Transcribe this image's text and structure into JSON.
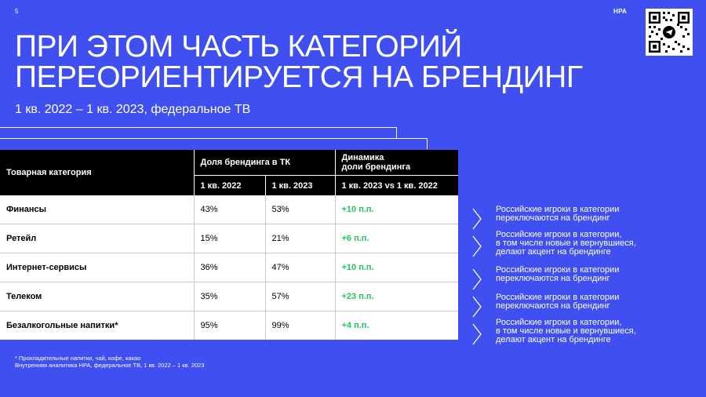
{
  "page_number": "5",
  "brand": "НРА",
  "title_lines": [
    "При этом часть категорий",
    "переориентируется на брендинг"
  ],
  "subtitle": "1 кв. 2022 – 1 кв. 2023, федеральное ТВ",
  "table": {
    "header": {
      "category": "Товарная категория",
      "share": "Доля брендинга в ТК",
      "dynamics": [
        "Динамика",
        "доли брендинга"
      ],
      "q1_2022": "1 кв. 2022",
      "q1_2023": "1 кв. 2023",
      "compare": "1 кв. 2023 vs 1 кв. 2022"
    },
    "rows": [
      {
        "category": "Финансы",
        "q1_2022": "43%",
        "q1_2023": "53%",
        "dynamics": "+10 п.п."
      },
      {
        "category": "Ретейл",
        "q1_2022": "15%",
        "q1_2023": "21%",
        "dynamics": "+6 п.п."
      },
      {
        "category": "Интернет-сервисы",
        "q1_2022": "36%",
        "q1_2023": "47%",
        "dynamics": "+10 п.п."
      },
      {
        "category": "Телеком",
        "q1_2022": "35%",
        "q1_2023": "57%",
        "dynamics": "+23 п.п."
      },
      {
        "category": "Безалкогольные напитки*",
        "q1_2022": "95%",
        "q1_2023": "99%",
        "dynamics": "+4 п.п."
      }
    ]
  },
  "notes": [
    {
      "lines": [
        "Российские игроки в категории",
        "переключаются на брендинг"
      ]
    },
    {
      "lines": [
        "Российские игроки в категории,",
        "в том числе новые и вернувшиеся,",
        "делают акцент на брендинге"
      ]
    },
    {
      "lines": [
        "Российские игроки в категории",
        "переключаются на брендинг"
      ]
    },
    {
      "lines": [
        "Российские игроки в категории",
        "переключаются на брендинг"
      ]
    },
    {
      "lines": [
        "Российские игроки в категории,",
        "в том числе новые и вернувшиеся,",
        "делают акцент на брендинге"
      ]
    }
  ],
  "footnotes": [
    "* Прохладительные напитки, чай, кофе, какао",
    "Внутренняя аналитика НРА, федеральное ТВ, 1 кв. 2022 – 1 кв. 2023"
  ],
  "icons": {
    "qr": "qr-code-icon",
    "telegram": "telegram-plane-icon",
    "chevron": "chevron-right-icon"
  },
  "colors": {
    "background": "#3f4ff0",
    "header": "#000000",
    "positive": "#22c55e"
  }
}
